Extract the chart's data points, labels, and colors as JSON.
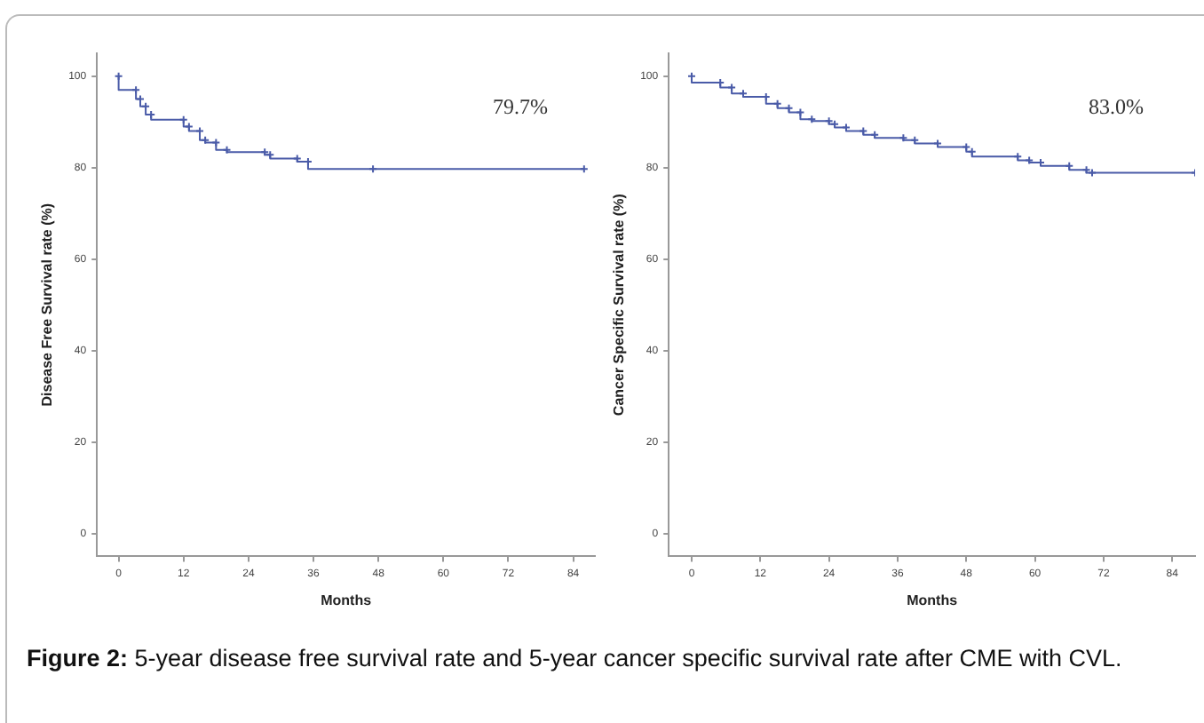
{
  "chart_data": [
    {
      "type": "step",
      "xlabel": "Months",
      "ylabel": "Disease Free Survival rate (%)",
      "series": [
        {
          "color": "#4a5ba8",
          "x": [
            0,
            3.2,
            4,
            5,
            6,
            12,
            13,
            15,
            16,
            18,
            20,
            27,
            28,
            33,
            35,
            47,
            86
          ],
          "values": [
            100,
            97,
            95,
            93.4,
            91.6,
            90.5,
            89,
            88,
            86,
            85.5,
            83.9,
            83.4,
            82.8,
            82,
            81.3,
            79.7,
            79.7
          ]
        }
      ],
      "xlim": [
        -4,
        88
      ],
      "xticks": [
        0,
        12,
        24,
        36,
        48,
        60,
        72,
        84
      ],
      "ylim": [
        -5,
        105
      ],
      "yticks": [
        0,
        20,
        40,
        60,
        80,
        100
      ],
      "grid": false,
      "legend": false,
      "marker": "cross",
      "line_style": "solid",
      "annotations": [
        "79.7%",
        "Figure 2:  5-year disease free survival rate and 5-year cancer specific survival rate after CME with CVL."
      ]
    },
    {
      "type": "step",
      "xlabel": "Months",
      "ylabel": "Cancer Specific Survival rate (%)",
      "series": [
        {
          "color": "#4a5ba8",
          "x": [
            0,
            5,
            7,
            9,
            13,
            15,
            17,
            19,
            21,
            24,
            25,
            27,
            30,
            32,
            37,
            39,
            43,
            48,
            49,
            57,
            59,
            61,
            66,
            69,
            70,
            88
          ],
          "values": [
            100,
            98.6,
            97.5,
            96.2,
            95.5,
            94,
            93,
            92.1,
            90.6,
            90.2,
            89.5,
            88.8,
            88,
            87.2,
            86.5,
            86,
            85.3,
            84.5,
            83.5,
            82.4,
            81.6,
            81.1,
            80.4,
            79.5,
            78.9,
            78.9
          ]
        }
      ],
      "xlim": [
        -4,
        88
      ],
      "xticks": [
        0,
        12,
        24,
        36,
        48,
        60,
        72,
        84
      ],
      "ylim": [
        -5,
        105
      ],
      "yticks": [
        0,
        20,
        40,
        60,
        80,
        100
      ],
      "grid": false,
      "legend": false,
      "marker": "cross",
      "line_style": "solid",
      "annotations": [
        "83.0%"
      ]
    }
  ]
}
